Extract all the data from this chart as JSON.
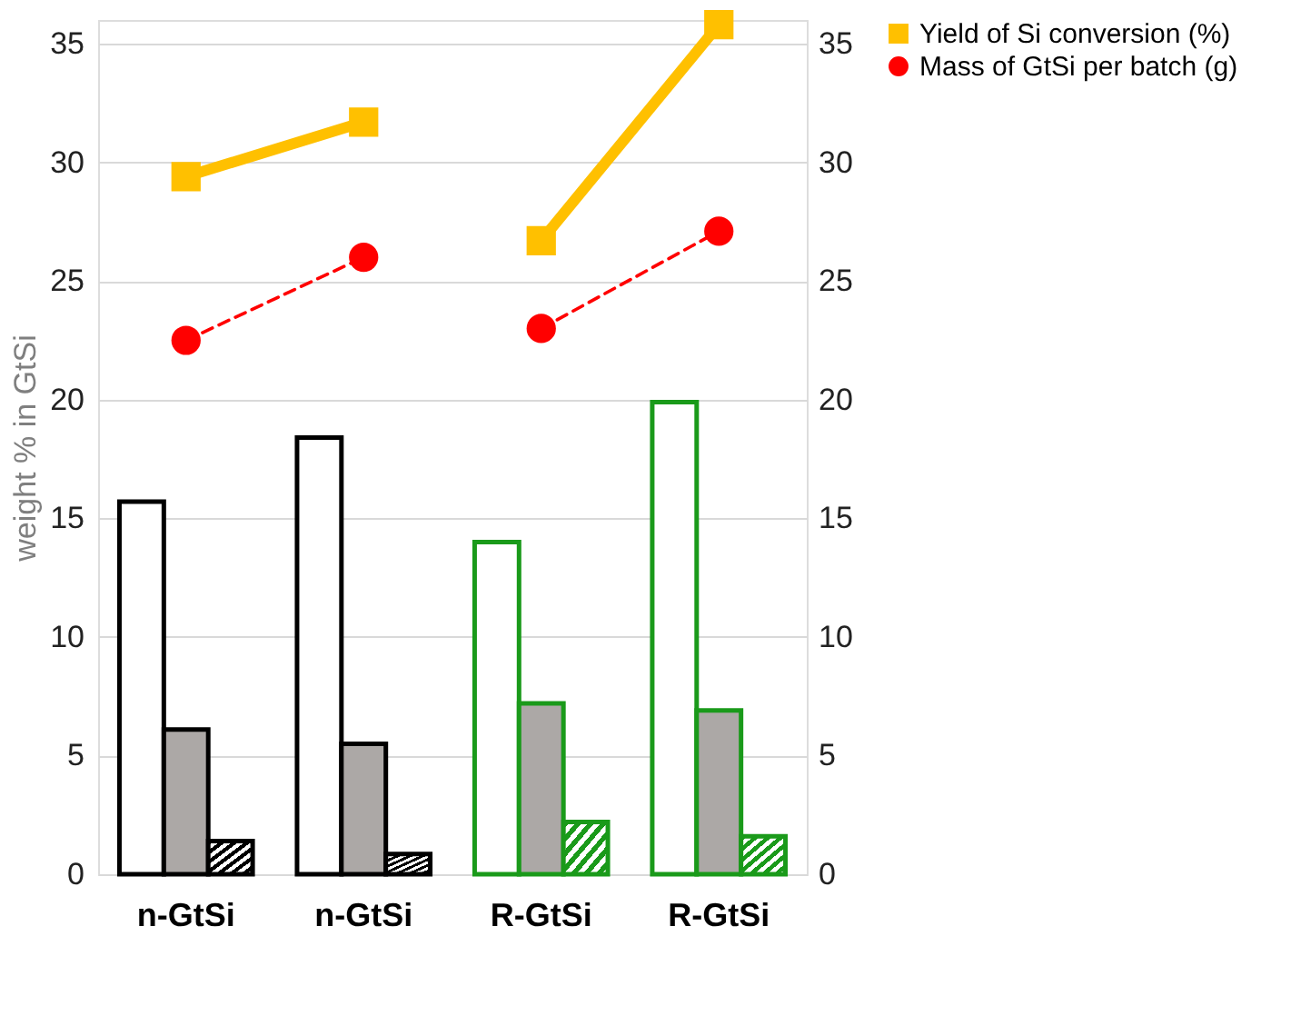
{
  "chart_data": {
    "type": "bar",
    "categories": [
      "n-GtSi",
      "n-GtSi",
      "R-GtSi",
      "R-GtSi"
    ],
    "ylabel": "weight % in GtSi",
    "ylim": [
      0,
      36
    ],
    "yticks": [
      0,
      5,
      10,
      15,
      20,
      25,
      30,
      35
    ],
    "y2lim": [
      0,
      36
    ],
    "y2ticks": [
      0,
      5,
      10,
      15,
      20,
      25,
      30,
      35
    ],
    "grid": "y",
    "legend": "right",
    "series": [
      {
        "color": "#ffffff",
        "colors": [
          "#000000",
          "#000000",
          "#1a9a1a",
          "#1a9a1a"
        ],
        "values": [
          15.7,
          18.4,
          14.0,
          19.9
        ]
      },
      {
        "color": "#aca8a6",
        "colors": [
          "#000000",
          "#000000",
          "#1a9a1a",
          "#1a9a1a"
        ],
        "values": [
          6.1,
          5.5,
          7.2,
          6.9
        ]
      },
      {
        "colors": [
          "#000000",
          "#000000",
          "#1a9a1a",
          "#1a9a1a"
        ],
        "values": [
          1.4,
          0.85,
          2.2,
          1.6
        ]
      },
      {
        "type": "line",
        "axis": "y2",
        "name": "Yield of Si conversion (%)",
        "color": "#ffc000",
        "marker": "square",
        "line_style": "solid",
        "values": [
          29.4,
          31.7,
          null,
          null
        ]
      },
      {
        "type": "line",
        "axis": "y2",
        "color": "#ffc000",
        "marker": "square",
        "line_style": "solid",
        "values": [
          null,
          null,
          26.7,
          35.8
        ]
      },
      {
        "type": "line",
        "axis": "y2",
        "name": "Mass of GtSi per batch (g)",
        "color": "#ff0000",
        "marker": "circle",
        "line_style": "dashed",
        "values": [
          22.5,
          26.0,
          null,
          null
        ]
      },
      {
        "type": "line",
        "axis": "y2",
        "color": "#ff0000",
        "marker": "circle",
        "line_style": "dashed",
        "values": [
          null,
          null,
          23.0,
          27.1
        ]
      }
    ]
  }
}
